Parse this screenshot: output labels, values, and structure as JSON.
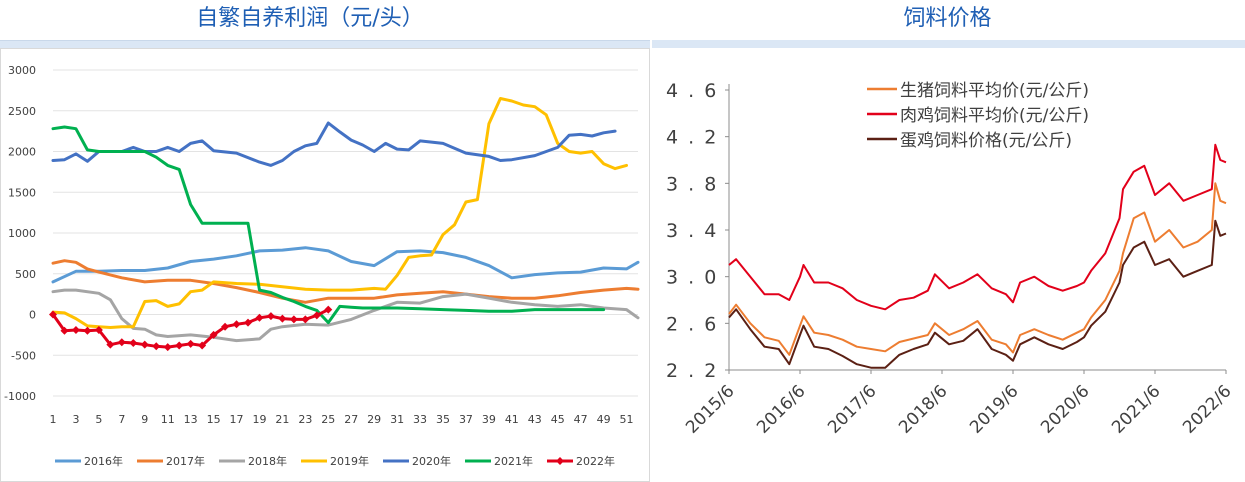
{
  "left_title": "自繁自养利润（元/头）",
  "right_title": "饲料价格",
  "chart_data": [
    {
      "type": "line",
      "title": "自繁自养利润（元/头）",
      "legend_position": "bottom",
      "grid": true,
      "ylim": [
        -1000,
        3000
      ],
      "yticks": [
        "3000",
        "2500",
        "2000",
        "1500",
        "1000",
        "500",
        "0",
        "-500",
        "-1000"
      ],
      "xlim": [
        1,
        52
      ],
      "xticks": [
        "1",
        "3",
        "5",
        "7",
        "9",
        "11",
        "13",
        "15",
        "17",
        "19",
        "21",
        "23",
        "25",
        "27",
        "29",
        "31",
        "33",
        "35",
        "37",
        "39",
        "41",
        "43",
        "45",
        "47",
        "49",
        "51"
      ],
      "series": [
        {
          "name": "2016年",
          "color": "#5b9bd5",
          "marker": false,
          "x": [
            1,
            3,
            5,
            7,
            9,
            11,
            13,
            15,
            17,
            19,
            21,
            23,
            25,
            27,
            29,
            31,
            33,
            35,
            37,
            39,
            41,
            43,
            45,
            47,
            49,
            51,
            52
          ],
          "values": [
            400,
            530,
            530,
            540,
            540,
            570,
            650,
            680,
            720,
            780,
            790,
            820,
            780,
            650,
            600,
            770,
            780,
            760,
            700,
            600,
            450,
            490,
            510,
            520,
            570,
            560,
            640
          ]
        },
        {
          "name": "2017年",
          "color": "#ed7d31",
          "marker": false,
          "x": [
            1,
            2,
            3,
            4,
            5,
            7,
            9,
            11,
            13,
            15,
            17,
            19,
            21,
            23,
            25,
            27,
            29,
            31,
            33,
            35,
            37,
            39,
            41,
            43,
            45,
            47,
            49,
            51,
            52
          ],
          "values": [
            630,
            660,
            640,
            560,
            520,
            450,
            400,
            420,
            420,
            380,
            330,
            270,
            200,
            150,
            200,
            200,
            200,
            240,
            260,
            280,
            250,
            220,
            200,
            200,
            230,
            270,
            300,
            320,
            310
          ]
        },
        {
          "name": "2018年",
          "color": "#a5a5a5",
          "marker": false,
          "x": [
            1,
            2,
            3,
            5,
            6,
            7,
            8,
            9,
            10,
            11,
            13,
            15,
            17,
            19,
            20,
            21,
            23,
            25,
            27,
            29,
            31,
            33,
            35,
            37,
            39,
            41,
            43,
            45,
            47,
            49,
            51,
            52
          ],
          "values": [
            280,
            300,
            300,
            260,
            180,
            -50,
            -170,
            -180,
            -250,
            -270,
            -250,
            -280,
            -320,
            -300,
            -180,
            -150,
            -120,
            -130,
            -60,
            50,
            150,
            140,
            220,
            250,
            200,
            150,
            120,
            100,
            120,
            80,
            60,
            -40
          ]
        },
        {
          "name": "2019年",
          "color": "#ffc000",
          "marker": false,
          "x": [
            1,
            2,
            3,
            4,
            5,
            6,
            7,
            8,
            9,
            10,
            11,
            12,
            13,
            14,
            15,
            17,
            19,
            21,
            23,
            25,
            27,
            29,
            30,
            31,
            32,
            33,
            34,
            35,
            36,
            37,
            38,
            39,
            40,
            41,
            42,
            43,
            44,
            45,
            46,
            47,
            48,
            49,
            50,
            51
          ],
          "values": [
            30,
            20,
            -50,
            -140,
            -150,
            -160,
            -150,
            -150,
            160,
            170,
            100,
            130,
            280,
            300,
            400,
            380,
            370,
            340,
            310,
            300,
            300,
            320,
            310,
            480,
            700,
            720,
            730,
            980,
            1100,
            1380,
            1410,
            2340,
            2650,
            2620,
            2570,
            2550,
            2450,
            2100,
            2000,
            1980,
            2000,
            1850,
            1790,
            1830
          ]
        },
        {
          "name": "2020年",
          "color": "#4472c4",
          "marker": false,
          "x": [
            1,
            2,
            3,
            4,
            5,
            6,
            7,
            8,
            9,
            10,
            11,
            12,
            13,
            14,
            15,
            17,
            19,
            20,
            21,
            22,
            23,
            24,
            25,
            26,
            27,
            28,
            29,
            30,
            31,
            32,
            33,
            35,
            37,
            39,
            40,
            41,
            43,
            45,
            46,
            47,
            48,
            49,
            50
          ],
          "values": [
            1890,
            1900,
            1970,
            1880,
            2000,
            2000,
            2000,
            2050,
            2000,
            2000,
            2050,
            2000,
            2100,
            2130,
            2010,
            1980,
            1870,
            1830,
            1890,
            2000,
            2070,
            2100,
            2350,
            2240,
            2140,
            2080,
            2000,
            2100,
            2030,
            2020,
            2130,
            2100,
            1980,
            1940,
            1890,
            1900,
            1950,
            2050,
            2200,
            2210,
            2190,
            2230,
            2250
          ]
        },
        {
          "name": "2021年",
          "color": "#00b050",
          "marker": false,
          "x": [
            1,
            2,
            3,
            4,
            5,
            6,
            7,
            8,
            9,
            10,
            11,
            12,
            13,
            14,
            15,
            16,
            17,
            18,
            19,
            20,
            21,
            22,
            23,
            24,
            25,
            26,
            27,
            28,
            29,
            30,
            31,
            33,
            35,
            37,
            39,
            41,
            43,
            45,
            47,
            49
          ],
          "values": [
            2280,
            2300,
            2280,
            2020,
            2000,
            2000,
            2000,
            2000,
            2000,
            1930,
            1830,
            1780,
            1350,
            1120,
            1120,
            1120,
            1120,
            1120,
            300,
            270,
            210,
            160,
            100,
            50,
            -100,
            100,
            90,
            80,
            80,
            80,
            80,
            70,
            60,
            50,
            40,
            40,
            60,
            60,
            60,
            60
          ]
        },
        {
          "name": "2022年",
          "color": "#e2001a",
          "marker": true,
          "x": [
            1,
            2,
            3,
            4,
            5,
            6,
            7,
            8,
            9,
            10,
            11,
            12,
            13,
            14,
            15,
            16,
            17,
            18,
            19,
            20,
            21,
            22,
            23,
            24,
            25
          ],
          "values": [
            0,
            -200,
            -190,
            -200,
            -190,
            -370,
            -340,
            -350,
            -370,
            -390,
            -400,
            -380,
            -360,
            -380,
            -250,
            -150,
            -120,
            -100,
            -40,
            -20,
            -50,
            -60,
            -60,
            -10,
            60
          ]
        }
      ]
    },
    {
      "type": "line",
      "title": "饲料价格",
      "legend_position": "top-right",
      "grid": false,
      "ylim": [
        2.2,
        4.6
      ],
      "yticks": [
        "4.6",
        "4.2",
        "3.8",
        "3.4",
        "3.0",
        "2.6",
        "2.2"
      ],
      "xticks": [
        "2015/6",
        "2016/6",
        "2017/6",
        "2018/6",
        "2019/6",
        "2020/6",
        "2021/6",
        "2022/6"
      ],
      "xlim": [
        2015.5,
        2022.5
      ],
      "series": [
        {
          "name": "生猪饲料平均价(元/公斤)",
          "color": "#ed7d31",
          "x": [
            2015.5,
            2015.6,
            2015.8,
            2016.0,
            2016.2,
            2016.35,
            2016.5,
            2016.55,
            2016.7,
            2016.9,
            2017.1,
            2017.3,
            2017.5,
            2017.7,
            2017.9,
            2018.1,
            2018.3,
            2018.4,
            2018.6,
            2018.8,
            2019.0,
            2019.2,
            2019.4,
            2019.5,
            2019.6,
            2019.8,
            2020.0,
            2020.2,
            2020.4,
            2020.5,
            2020.6,
            2020.8,
            2021.0,
            2021.05,
            2021.2,
            2021.35,
            2021.5,
            2021.7,
            2021.9,
            2022.1,
            2022.3,
            2022.35,
            2022.42,
            2022.5
          ],
          "values": [
            2.68,
            2.76,
            2.6,
            2.48,
            2.45,
            2.33,
            2.58,
            2.66,
            2.52,
            2.5,
            2.46,
            2.4,
            2.38,
            2.36,
            2.44,
            2.47,
            2.5,
            2.6,
            2.5,
            2.55,
            2.62,
            2.46,
            2.42,
            2.35,
            2.5,
            2.55,
            2.5,
            2.46,
            2.52,
            2.55,
            2.65,
            2.8,
            3.05,
            3.2,
            3.5,
            3.55,
            3.3,
            3.4,
            3.25,
            3.3,
            3.4,
            3.8,
            3.65,
            3.63
          ]
        },
        {
          "name": "肉鸡饲料平均价(元/公斤)",
          "color": "#e2001a",
          "x": [
            2015.5,
            2015.6,
            2015.8,
            2016.0,
            2016.2,
            2016.35,
            2016.5,
            2016.55,
            2016.7,
            2016.9,
            2017.1,
            2017.3,
            2017.5,
            2017.7,
            2017.9,
            2018.1,
            2018.3,
            2018.4,
            2018.6,
            2018.8,
            2019.0,
            2019.2,
            2019.4,
            2019.5,
            2019.6,
            2019.8,
            2020.0,
            2020.2,
            2020.4,
            2020.5,
            2020.6,
            2020.8,
            2021.0,
            2021.05,
            2021.2,
            2021.35,
            2021.5,
            2021.7,
            2021.9,
            2022.1,
            2022.3,
            2022.35,
            2022.42,
            2022.5
          ],
          "values": [
            3.1,
            3.15,
            3.0,
            2.85,
            2.85,
            2.8,
            3.0,
            3.1,
            2.95,
            2.95,
            2.9,
            2.8,
            2.75,
            2.72,
            2.8,
            2.82,
            2.88,
            3.02,
            2.9,
            2.95,
            3.02,
            2.9,
            2.85,
            2.78,
            2.95,
            3.0,
            2.92,
            2.88,
            2.92,
            2.95,
            3.05,
            3.2,
            3.5,
            3.75,
            3.9,
            3.95,
            3.7,
            3.8,
            3.65,
            3.7,
            3.75,
            4.13,
            4.0,
            3.98
          ]
        },
        {
          "name": "蛋鸡饲料价格(元/公斤)",
          "color": "#5b2014",
          "x": [
            2015.5,
            2015.6,
            2015.8,
            2016.0,
            2016.2,
            2016.35,
            2016.5,
            2016.55,
            2016.7,
            2016.9,
            2017.1,
            2017.3,
            2017.5,
            2017.7,
            2017.9,
            2018.1,
            2018.3,
            2018.4,
            2018.6,
            2018.8,
            2019.0,
            2019.2,
            2019.4,
            2019.5,
            2019.6,
            2019.8,
            2020.0,
            2020.2,
            2020.4,
            2020.5,
            2020.6,
            2020.8,
            2021.0,
            2021.05,
            2021.2,
            2021.35,
            2021.5,
            2021.7,
            2021.9,
            2022.1,
            2022.3,
            2022.35,
            2022.42,
            2022.5
          ],
          "values": [
            2.65,
            2.72,
            2.55,
            2.4,
            2.38,
            2.25,
            2.5,
            2.58,
            2.4,
            2.38,
            2.32,
            2.25,
            2.22,
            2.22,
            2.33,
            2.38,
            2.42,
            2.52,
            2.42,
            2.45,
            2.55,
            2.38,
            2.33,
            2.28,
            2.42,
            2.48,
            2.42,
            2.38,
            2.44,
            2.48,
            2.58,
            2.7,
            2.95,
            3.1,
            3.25,
            3.3,
            3.1,
            3.15,
            3.0,
            3.05,
            3.1,
            3.48,
            3.35,
            3.37
          ]
        }
      ]
    }
  ]
}
